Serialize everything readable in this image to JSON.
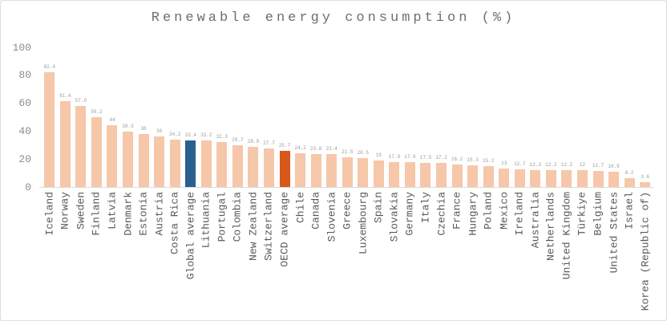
{
  "window": {
    "background": "#ffffff",
    "border_color": "#dcdfe3"
  },
  "chart_data": {
    "type": "bar",
    "title": "Renewable energy consumption (%)",
    "categories": [
      "Iceland",
      "Norway",
      "Sweden",
      "Finland",
      "Latvia",
      "Denmark",
      "Estonia",
      "Austria",
      "Costa Rica",
      "Global average",
      "Lithuania",
      "Portugal",
      "Colombia",
      "New Zealand",
      "Switzerland",
      "OECD average",
      "Chile",
      "Canada",
      "Slovenia",
      "Greece",
      "Luxembourg",
      "Spain",
      "Slovakia",
      "Germany",
      "Italy",
      "Czechia",
      "France",
      "Hungary",
      "Poland",
      "Mexico",
      "Ireland",
      "Australia",
      "Netherlands",
      "United Kingdom",
      "Türkiye",
      "Belgium",
      "United States",
      "Israel",
      "Korea (Republic of)"
    ],
    "values": [
      82.4,
      61.4,
      57.9,
      50.2,
      44,
      39.5,
      38,
      36,
      34.2,
      33.4,
      33.2,
      32.3,
      29.7,
      28.9,
      27.7,
      25.7,
      24.2,
      23.8,
      23.4,
      21.5,
      20.5,
      19,
      17.9,
      17.6,
      17.5,
      17.2,
      16.2,
      15.3,
      15.2,
      13,
      12.7,
      12.3,
      12.2,
      12.2,
      12,
      11.7,
      10.9,
      6.2,
      3.6
    ],
    "data_labels": [
      "82.4",
      "61.4",
      "57.9",
      "50.2",
      "44",
      "39.5",
      "38",
      "36",
      "34.2",
      "33.4",
      "33.2",
      "32.3",
      "29.7",
      "28.9",
      "27.7",
      "25.7",
      "24.2",
      "23.8",
      "23.4",
      "21.5",
      "20.5",
      "19",
      "17.9",
      "17.6",
      "17.5",
      "17.2",
      "16.2",
      "15.3",
      "15.2",
      "13",
      "12.7",
      "12.3",
      "12.2",
      "12.2",
      "12",
      "11.7",
      "10.9",
      "6.2",
      "3.6"
    ],
    "xlabel": "",
    "ylabel": "",
    "ylim": [
      0,
      100
    ],
    "y_ticks": [
      0,
      20,
      40,
      60,
      80,
      100
    ],
    "grid": false,
    "legend": false,
    "default_bar_color": "#F6C7A9",
    "highlight_bars": [
      {
        "index": 9,
        "label": "Global average",
        "color": "#2A608F"
      },
      {
        "index": 15,
        "label": "OECD average",
        "color": "#D8581B"
      }
    ],
    "text_colors": {
      "title": "#6e6e6e",
      "y_ticks": "#8c8c8c",
      "data_labels": "#9a9a9a",
      "category_labels": "#595959"
    }
  }
}
